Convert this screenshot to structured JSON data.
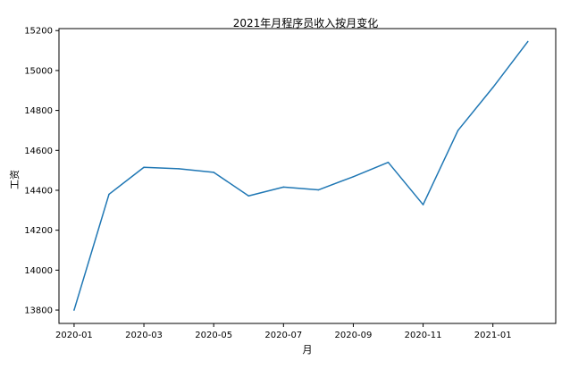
{
  "chart_data": {
    "type": "line",
    "title": "2021年月程序员收入按月变化",
    "xlabel": "月",
    "ylabel": "工资",
    "x": [
      "2020-01",
      "2020-02",
      "2020-03",
      "2020-04",
      "2020-05",
      "2020-06",
      "2020-07",
      "2020-08",
      "2020-09",
      "2020-10",
      "2020-11",
      "2020-12",
      "2021-01",
      "2021-02"
    ],
    "series": [
      {
        "values": [
          13800,
          14380,
          14515,
          14508,
          14490,
          14372,
          14416,
          14402,
          14468,
          14540,
          14328,
          14700,
          14915,
          15145
        ],
        "color": "#1f77b4"
      }
    ],
    "xticks": [
      "2020-01",
      "2020-03",
      "2020-05",
      "2020-07",
      "2020-09",
      "2020-11",
      "2021-01"
    ],
    "yticks": [
      13800,
      14000,
      14200,
      14400,
      14600,
      14800,
      15000,
      15200
    ],
    "ylim": [
      13733,
      15210
    ],
    "xlim": [
      "2019-12-18",
      "2021-02-25"
    ],
    "grid": false,
    "legend": "none"
  }
}
